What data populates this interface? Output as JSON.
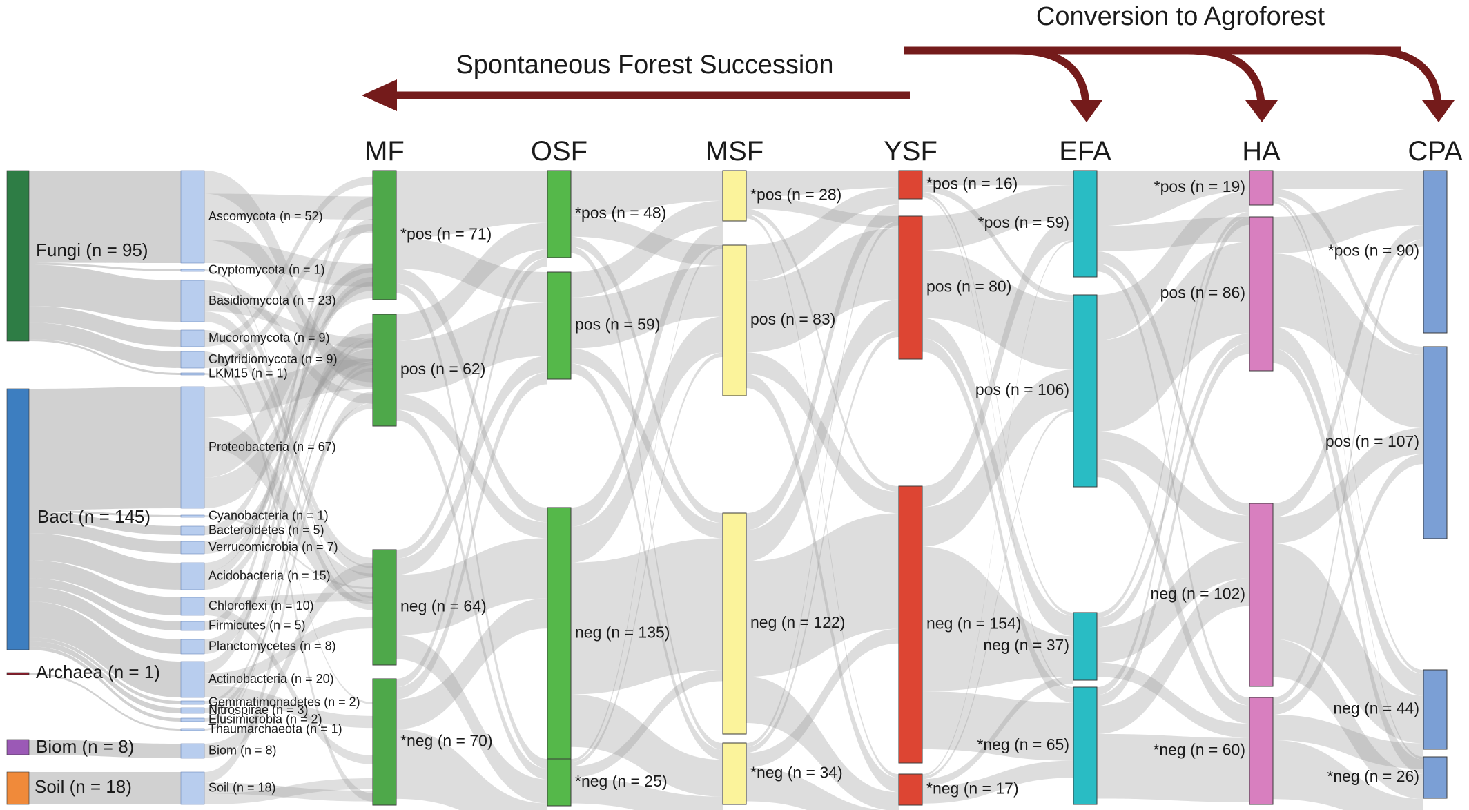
{
  "banners": {
    "agroforest": "Conversion to Agroforest",
    "succession": "Spontaneous Forest Succession"
  },
  "colors": {
    "fungi": "#2e7d45",
    "bact": "#3d7ec0",
    "archaea": "#8b1c2a",
    "biom": "#9b59b6",
    "soil": "#f08a3a",
    "phylum": "#b8cdee",
    "MF": "#4ea84a",
    "OSF": "#55b84a",
    "MSF": "#fbf39b",
    "YSF": "#dd4533",
    "EFA": "#29bcc4",
    "HA": "#d87fbf",
    "CPA": "#7b9fd5",
    "arrow": "#741b1b",
    "flow": "#9a9a9a"
  },
  "groups": [
    {
      "key": "fungi",
      "label": "Fungi (n = 95)"
    },
    {
      "key": "bact",
      "label": "Bact (n = 145)"
    },
    {
      "key": "archaea",
      "label": "Archaea (n = 1)"
    },
    {
      "key": "biom",
      "label": "Biom (n = 8)"
    },
    {
      "key": "soil",
      "label": "Soil (n = 18)"
    }
  ],
  "phyla": [
    {
      "label": "Ascomycota (n = 52)",
      "n": 52
    },
    {
      "label": "Cryptomycota (n = 1)",
      "n": 1
    },
    {
      "label": "Basidiomycota (n = 23)",
      "n": 23
    },
    {
      "label": "Mucoromycota (n = 9)",
      "n": 9
    },
    {
      "label": "Chytridiomycota (n = 9)",
      "n": 9
    },
    {
      "label": "LKM15 (n = 1)",
      "n": 1
    },
    {
      "label": "Proteobacteria (n = 67)",
      "n": 67
    },
    {
      "label": "Cyanobacteria (n = 1)",
      "n": 1
    },
    {
      "label": "Bacteroidetes (n = 5)",
      "n": 5
    },
    {
      "label": "Verrucomicrobia (n = 7)",
      "n": 7
    },
    {
      "label": "Acidobacteria (n = 15)",
      "n": 15
    },
    {
      "label": "Chloroflexi (n = 10)",
      "n": 10
    },
    {
      "label": "Firmicutes (n = 5)",
      "n": 5
    },
    {
      "label": "Planctomycetes (n = 8)",
      "n": 8
    },
    {
      "label": "Actinobacteria (n = 20)",
      "n": 20
    },
    {
      "label": "Gemmatimonadetes (n = 2)",
      "n": 2
    },
    {
      "label": "Nitrospirae (n = 3)",
      "n": 3
    },
    {
      "label": "Elusimicrobia (n = 2)",
      "n": 2
    },
    {
      "label": "Thaumarchaeota (n = 1)",
      "n": 1
    },
    {
      "label": "Biom (n = 8)",
      "n": 8
    },
    {
      "label": "Soil (n = 18)",
      "n": 18
    }
  ],
  "columns": [
    {
      "key": "MF",
      "title": "MF",
      "nodes": [
        {
          "label": "*pos (n = 71)",
          "n": 71
        },
        {
          "label": "pos (n = 62)",
          "n": 62
        },
        {
          "label": "neg (n = 64)",
          "n": 64
        },
        {
          "label": "*neg (n = 70)",
          "n": 70
        }
      ]
    },
    {
      "key": "OSF",
      "title": "OSF",
      "nodes": [
        {
          "label": "*pos (n = 48)",
          "n": 48
        },
        {
          "label": "pos (n = 59)",
          "n": 59
        },
        {
          "label": "neg (n = 135)",
          "n": 135
        },
        {
          "label": "*neg (n = 25)",
          "n": 25
        }
      ]
    },
    {
      "key": "MSF",
      "title": "MSF",
      "nodes": [
        {
          "label": "*pos (n = 28)",
          "n": 28
        },
        {
          "label": "pos (n = 83)",
          "n": 83
        },
        {
          "label": "neg (n = 122)",
          "n": 122
        },
        {
          "label": "*neg (n = 34)",
          "n": 34
        }
      ]
    },
    {
      "key": "YSF",
      "title": "YSF",
      "nodes": [
        {
          "label": "*pos (n = 16)",
          "n": 16
        },
        {
          "label": "pos (n = 80)",
          "n": 80
        },
        {
          "label": "neg (n = 154)",
          "n": 154
        },
        {
          "label": "*neg (n = 17)",
          "n": 17
        }
      ]
    },
    {
      "key": "EFA",
      "title": "EFA",
      "nodes": [
        {
          "label": "*pos (n = 59)",
          "n": 59
        },
        {
          "label": "pos (n = 106)",
          "n": 106
        },
        {
          "label": "neg (n = 37)",
          "n": 37
        },
        {
          "label": "*neg (n = 65)",
          "n": 65
        }
      ]
    },
    {
      "key": "HA",
      "title": "HA",
      "nodes": [
        {
          "label": "*pos (n = 19)",
          "n": 19
        },
        {
          "label": "pos (n = 86)",
          "n": 86
        },
        {
          "label": "neg (n = 102)",
          "n": 102
        },
        {
          "label": "*neg (n = 60)",
          "n": 60
        }
      ]
    },
    {
      "key": "CPA",
      "title": "CPA",
      "nodes": [
        {
          "label": "*pos (n = 90)",
          "n": 90
        },
        {
          "label": "pos (n = 107)",
          "n": 107
        },
        {
          "label": "neg (n = 44)",
          "n": 44
        },
        {
          "label": "*neg (n = 26)",
          "n": 26
        }
      ]
    }
  ]
}
